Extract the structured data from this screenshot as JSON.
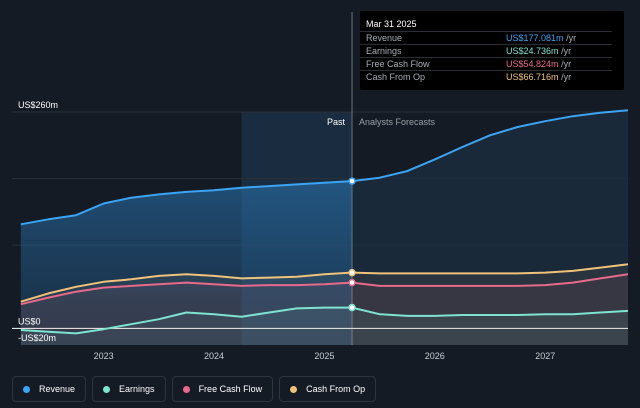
{
  "tooltip": {
    "date": "Mar 31 2025",
    "rows": [
      {
        "label": "Revenue",
        "value": "US$177.081m",
        "unit": "/yr",
        "color": "#3ba4f5"
      },
      {
        "label": "Earnings",
        "value": "US$24.736m",
        "unit": "/yr",
        "color": "#7fe3d1"
      },
      {
        "label": "Free Cash Flow",
        "value": "US$54.824m",
        "unit": "/yr",
        "color": "#e86a8a"
      },
      {
        "label": "Cash From Op",
        "value": "US$66.716m",
        "unit": "/yr",
        "color": "#f0c27a"
      }
    ]
  },
  "legend": [
    {
      "label": "Revenue",
      "color": "#3ba4f5"
    },
    {
      "label": "Earnings",
      "color": "#7fe3d1"
    },
    {
      "label": "Free Cash Flow",
      "color": "#e86a8a"
    },
    {
      "label": "Cash From Op",
      "color": "#f0c27a"
    }
  ],
  "chart_data": {
    "type": "line",
    "title": "",
    "xlabel": "",
    "ylabel": "",
    "xlim": [
      2022.17,
      2027.75
    ],
    "ylim": [
      -20,
      260
    ],
    "y_tick_labels": [
      {
        "value": 260,
        "label": "US$260m"
      },
      {
        "value": 0,
        "label": "US$0"
      },
      {
        "value": -20,
        "label": "-US$20m"
      }
    ],
    "x_ticks": [
      {
        "value": 2023.0,
        "label": "2023"
      },
      {
        "value": 2024.0,
        "label": "2024"
      },
      {
        "value": 2025.0,
        "label": "2025"
      },
      {
        "value": 2026.0,
        "label": "2026"
      },
      {
        "value": 2027.0,
        "label": "2027"
      }
    ],
    "divider_x": 2025.25,
    "highlight_range": [
      2024.25,
      2025.25
    ],
    "annotations": {
      "past": "Past",
      "forecast": "Analysts Forecasts"
    },
    "series": [
      {
        "name": "Revenue",
        "color": "#3ba4f5",
        "fill": true,
        "points": [
          [
            2022.25,
            125
          ],
          [
            2022.5,
            131
          ],
          [
            2022.75,
            136
          ],
          [
            2023.0,
            150
          ],
          [
            2023.25,
            157
          ],
          [
            2023.5,
            161
          ],
          [
            2023.75,
            164
          ],
          [
            2024.0,
            166
          ],
          [
            2024.25,
            169
          ],
          [
            2024.5,
            171
          ],
          [
            2024.75,
            173
          ],
          [
            2025.0,
            175
          ],
          [
            2025.25,
            177
          ],
          [
            2025.5,
            181
          ],
          [
            2025.75,
            189
          ],
          [
            2026.0,
            203
          ],
          [
            2026.25,
            218
          ],
          [
            2026.5,
            232
          ],
          [
            2026.75,
            242
          ],
          [
            2027.0,
            249
          ],
          [
            2027.25,
            255
          ],
          [
            2027.5,
            259
          ],
          [
            2027.75,
            262
          ]
        ],
        "marker_x": 2025.25
      },
      {
        "name": "Cash From Op",
        "color": "#f0c27a",
        "fill": false,
        "points": [
          [
            2022.25,
            32
          ],
          [
            2022.5,
            42
          ],
          [
            2022.75,
            50
          ],
          [
            2023.0,
            56
          ],
          [
            2023.25,
            59
          ],
          [
            2023.5,
            63
          ],
          [
            2023.75,
            65
          ],
          [
            2024.0,
            63
          ],
          [
            2024.25,
            60
          ],
          [
            2024.5,
            61
          ],
          [
            2024.75,
            62
          ],
          [
            2025.0,
            65
          ],
          [
            2025.25,
            67
          ],
          [
            2025.5,
            66
          ],
          [
            2025.75,
            66
          ],
          [
            2026.0,
            66
          ],
          [
            2026.25,
            66
          ],
          [
            2026.5,
            66
          ],
          [
            2026.75,
            66
          ],
          [
            2027.0,
            67
          ],
          [
            2027.25,
            69
          ],
          [
            2027.5,
            73
          ],
          [
            2027.75,
            77
          ]
        ],
        "marker_x": 2025.25
      },
      {
        "name": "Free Cash Flow",
        "color": "#e86a8a",
        "fill": false,
        "points": [
          [
            2022.25,
            29
          ],
          [
            2022.5,
            37
          ],
          [
            2022.75,
            44
          ],
          [
            2023.0,
            49
          ],
          [
            2023.25,
            51
          ],
          [
            2023.5,
            53
          ],
          [
            2023.75,
            55
          ],
          [
            2024.0,
            53
          ],
          [
            2024.25,
            51
          ],
          [
            2024.5,
            52
          ],
          [
            2024.75,
            52
          ],
          [
            2025.0,
            53
          ],
          [
            2025.25,
            55
          ],
          [
            2025.5,
            51
          ],
          [
            2025.75,
            51
          ],
          [
            2026.0,
            51
          ],
          [
            2026.25,
            51
          ],
          [
            2026.5,
            51
          ],
          [
            2026.75,
            51
          ],
          [
            2027.0,
            52
          ],
          [
            2027.25,
            55
          ],
          [
            2027.5,
            60
          ],
          [
            2027.75,
            65
          ]
        ],
        "marker_x": 2025.25
      },
      {
        "name": "Earnings",
        "color": "#7fe3d1",
        "fill": false,
        "points": [
          [
            2022.25,
            -2
          ],
          [
            2022.5,
            -4
          ],
          [
            2022.75,
            -6
          ],
          [
            2023.0,
            -1
          ],
          [
            2023.25,
            5
          ],
          [
            2023.5,
            11
          ],
          [
            2023.75,
            19
          ],
          [
            2024.0,
            17
          ],
          [
            2024.25,
            14
          ],
          [
            2024.5,
            19
          ],
          [
            2024.75,
            24
          ],
          [
            2025.0,
            25
          ],
          [
            2025.25,
            25
          ],
          [
            2025.5,
            17
          ],
          [
            2025.75,
            15
          ],
          [
            2026.0,
            15
          ],
          [
            2026.25,
            16
          ],
          [
            2026.5,
            16
          ],
          [
            2026.75,
            16
          ],
          [
            2027.0,
            17
          ],
          [
            2027.25,
            17
          ],
          [
            2027.5,
            19
          ],
          [
            2027.75,
            21
          ]
        ],
        "marker_x": 2025.25
      }
    ]
  }
}
